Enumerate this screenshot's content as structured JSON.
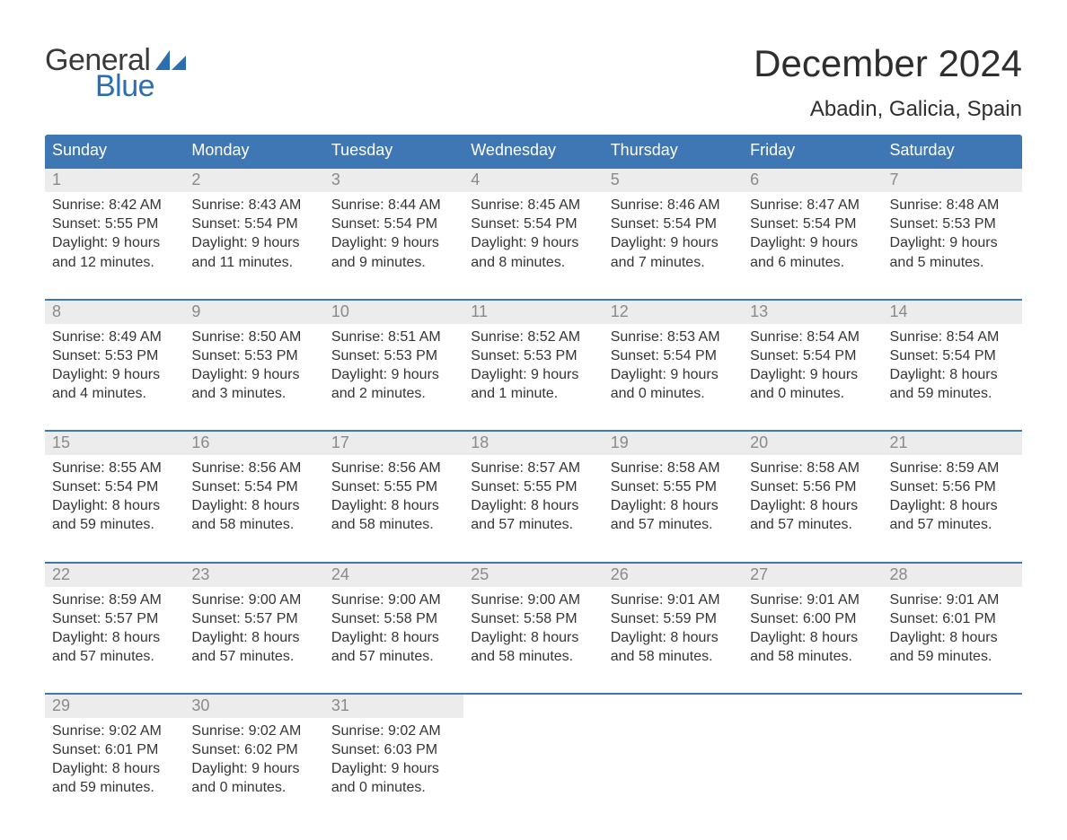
{
  "brand": {
    "general": "General",
    "blue": "Blue"
  },
  "title": "December 2024",
  "location": "Abadin, Galicia, Spain",
  "colors": {
    "header_bg": "#3f77b5",
    "header_text": "#ffffff",
    "week_border": "#3f77b5",
    "daynum_bg": "#ececec",
    "daynum_text": "#8a8a8a",
    "body_text": "#353535",
    "logo_blue": "#2b6fb0",
    "logo_gray": "#3a3a3a",
    "page_bg": "#ffffff"
  },
  "typography": {
    "title_fontsize": 42,
    "location_fontsize": 24,
    "weekday_fontsize": 18,
    "daynum_fontsize": 18,
    "body_fontsize": 16,
    "logo_fontsize": 34
  },
  "weekdays": [
    "Sunday",
    "Monday",
    "Tuesday",
    "Wednesday",
    "Thursday",
    "Friday",
    "Saturday"
  ],
  "weeks": [
    [
      {
        "n": "1",
        "sunrise": "Sunrise: 8:42 AM",
        "sunset": "Sunset: 5:55 PM",
        "d1": "Daylight: 9 hours",
        "d2": "and 12 minutes."
      },
      {
        "n": "2",
        "sunrise": "Sunrise: 8:43 AM",
        "sunset": "Sunset: 5:54 PM",
        "d1": "Daylight: 9 hours",
        "d2": "and 11 minutes."
      },
      {
        "n": "3",
        "sunrise": "Sunrise: 8:44 AM",
        "sunset": "Sunset: 5:54 PM",
        "d1": "Daylight: 9 hours",
        "d2": "and 9 minutes."
      },
      {
        "n": "4",
        "sunrise": "Sunrise: 8:45 AM",
        "sunset": "Sunset: 5:54 PM",
        "d1": "Daylight: 9 hours",
        "d2": "and 8 minutes."
      },
      {
        "n": "5",
        "sunrise": "Sunrise: 8:46 AM",
        "sunset": "Sunset: 5:54 PM",
        "d1": "Daylight: 9 hours",
        "d2": "and 7 minutes."
      },
      {
        "n": "6",
        "sunrise": "Sunrise: 8:47 AM",
        "sunset": "Sunset: 5:54 PM",
        "d1": "Daylight: 9 hours",
        "d2": "and 6 minutes."
      },
      {
        "n": "7",
        "sunrise": "Sunrise: 8:48 AM",
        "sunset": "Sunset: 5:53 PM",
        "d1": "Daylight: 9 hours",
        "d2": "and 5 minutes."
      }
    ],
    [
      {
        "n": "8",
        "sunrise": "Sunrise: 8:49 AM",
        "sunset": "Sunset: 5:53 PM",
        "d1": "Daylight: 9 hours",
        "d2": "and 4 minutes."
      },
      {
        "n": "9",
        "sunrise": "Sunrise: 8:50 AM",
        "sunset": "Sunset: 5:53 PM",
        "d1": "Daylight: 9 hours",
        "d2": "and 3 minutes."
      },
      {
        "n": "10",
        "sunrise": "Sunrise: 8:51 AM",
        "sunset": "Sunset: 5:53 PM",
        "d1": "Daylight: 9 hours",
        "d2": "and 2 minutes."
      },
      {
        "n": "11",
        "sunrise": "Sunrise: 8:52 AM",
        "sunset": "Sunset: 5:53 PM",
        "d1": "Daylight: 9 hours",
        "d2": "and 1 minute."
      },
      {
        "n": "12",
        "sunrise": "Sunrise: 8:53 AM",
        "sunset": "Sunset: 5:54 PM",
        "d1": "Daylight: 9 hours",
        "d2": "and 0 minutes."
      },
      {
        "n": "13",
        "sunrise": "Sunrise: 8:54 AM",
        "sunset": "Sunset: 5:54 PM",
        "d1": "Daylight: 9 hours",
        "d2": "and 0 minutes."
      },
      {
        "n": "14",
        "sunrise": "Sunrise: 8:54 AM",
        "sunset": "Sunset: 5:54 PM",
        "d1": "Daylight: 8 hours",
        "d2": "and 59 minutes."
      }
    ],
    [
      {
        "n": "15",
        "sunrise": "Sunrise: 8:55 AM",
        "sunset": "Sunset: 5:54 PM",
        "d1": "Daylight: 8 hours",
        "d2": "and 59 minutes."
      },
      {
        "n": "16",
        "sunrise": "Sunrise: 8:56 AM",
        "sunset": "Sunset: 5:54 PM",
        "d1": "Daylight: 8 hours",
        "d2": "and 58 minutes."
      },
      {
        "n": "17",
        "sunrise": "Sunrise: 8:56 AM",
        "sunset": "Sunset: 5:55 PM",
        "d1": "Daylight: 8 hours",
        "d2": "and 58 minutes."
      },
      {
        "n": "18",
        "sunrise": "Sunrise: 8:57 AM",
        "sunset": "Sunset: 5:55 PM",
        "d1": "Daylight: 8 hours",
        "d2": "and 57 minutes."
      },
      {
        "n": "19",
        "sunrise": "Sunrise: 8:58 AM",
        "sunset": "Sunset: 5:55 PM",
        "d1": "Daylight: 8 hours",
        "d2": "and 57 minutes."
      },
      {
        "n": "20",
        "sunrise": "Sunrise: 8:58 AM",
        "sunset": "Sunset: 5:56 PM",
        "d1": "Daylight: 8 hours",
        "d2": "and 57 minutes."
      },
      {
        "n": "21",
        "sunrise": "Sunrise: 8:59 AM",
        "sunset": "Sunset: 5:56 PM",
        "d1": "Daylight: 8 hours",
        "d2": "and 57 minutes."
      }
    ],
    [
      {
        "n": "22",
        "sunrise": "Sunrise: 8:59 AM",
        "sunset": "Sunset: 5:57 PM",
        "d1": "Daylight: 8 hours",
        "d2": "and 57 minutes."
      },
      {
        "n": "23",
        "sunrise": "Sunrise: 9:00 AM",
        "sunset": "Sunset: 5:57 PM",
        "d1": "Daylight: 8 hours",
        "d2": "and 57 minutes."
      },
      {
        "n": "24",
        "sunrise": "Sunrise: 9:00 AM",
        "sunset": "Sunset: 5:58 PM",
        "d1": "Daylight: 8 hours",
        "d2": "and 57 minutes."
      },
      {
        "n": "25",
        "sunrise": "Sunrise: 9:00 AM",
        "sunset": "Sunset: 5:58 PM",
        "d1": "Daylight: 8 hours",
        "d2": "and 58 minutes."
      },
      {
        "n": "26",
        "sunrise": "Sunrise: 9:01 AM",
        "sunset": "Sunset: 5:59 PM",
        "d1": "Daylight: 8 hours",
        "d2": "and 58 minutes."
      },
      {
        "n": "27",
        "sunrise": "Sunrise: 9:01 AM",
        "sunset": "Sunset: 6:00 PM",
        "d1": "Daylight: 8 hours",
        "d2": "and 58 minutes."
      },
      {
        "n": "28",
        "sunrise": "Sunrise: 9:01 AM",
        "sunset": "Sunset: 6:01 PM",
        "d1": "Daylight: 8 hours",
        "d2": "and 59 minutes."
      }
    ],
    [
      {
        "n": "29",
        "sunrise": "Sunrise: 9:02 AM",
        "sunset": "Sunset: 6:01 PM",
        "d1": "Daylight: 8 hours",
        "d2": "and 59 minutes."
      },
      {
        "n": "30",
        "sunrise": "Sunrise: 9:02 AM",
        "sunset": "Sunset: 6:02 PM",
        "d1": "Daylight: 9 hours",
        "d2": "and 0 minutes."
      },
      {
        "n": "31",
        "sunrise": "Sunrise: 9:02 AM",
        "sunset": "Sunset: 6:03 PM",
        "d1": "Daylight: 9 hours",
        "d2": "and 0 minutes."
      },
      null,
      null,
      null,
      null
    ]
  ]
}
